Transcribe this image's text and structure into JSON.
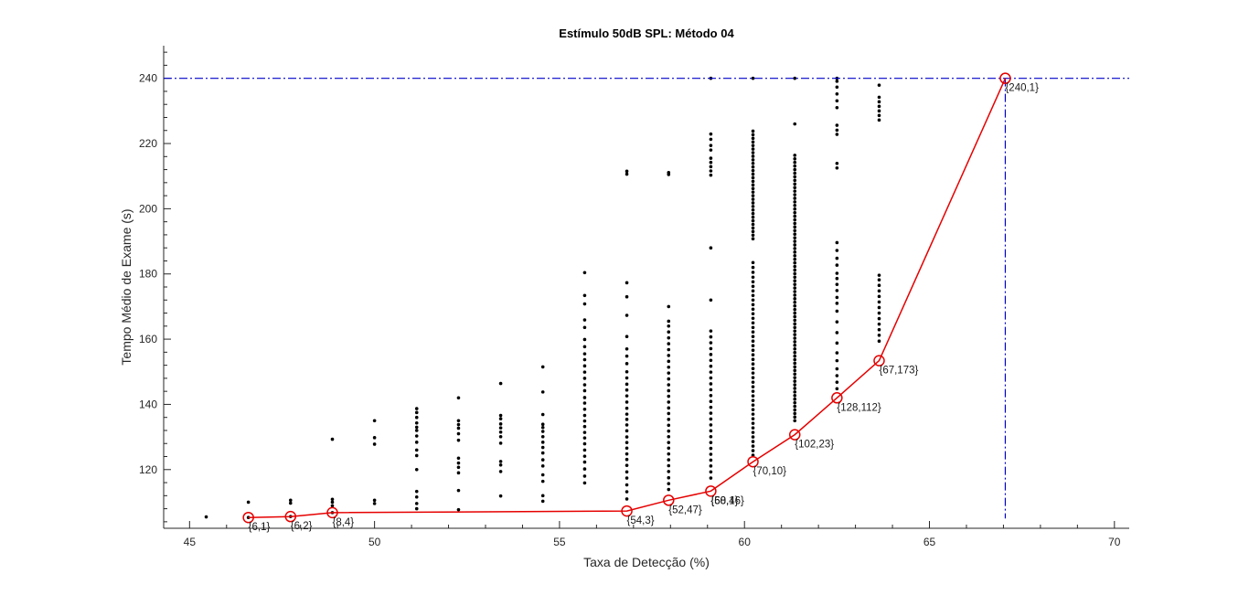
{
  "chart_data": {
    "type": "scatter",
    "title": "Estímulo 50dB SPL: Método 04",
    "xlabel": "Taxa de Detecção (%)",
    "ylabel": "Tempo Médio de Exame (s)",
    "xlim": [
      44.3,
      70.4
    ],
    "ylim": [
      102,
      250
    ],
    "x_ticks": [
      45,
      50,
      55,
      60,
      65,
      70
    ],
    "y_ticks": [
      120,
      140,
      160,
      180,
      200,
      220,
      240
    ],
    "grid": false,
    "legend": "none",
    "colors": {
      "scatter": "#000000",
      "frontier": "#e60000",
      "reference": "#0000cc"
    },
    "reference_lines": {
      "y": 240,
      "x": 67.05
    },
    "scatter_series": [
      {
        "x": 45.45,
        "values": [
          105.5
        ]
      },
      {
        "x": 46.59,
        "values": [
          105.3,
          110.0
        ]
      },
      {
        "x": 47.73,
        "values": [
          105.6,
          109.7,
          110.6
        ]
      },
      {
        "x": 48.86,
        "values": [
          106.8,
          108.9,
          110.0,
          110.9,
          129.3
        ]
      },
      {
        "x": 50.0,
        "values": [
          109.6,
          110.6,
          127.8,
          129.8,
          135.0
        ]
      },
      {
        "x": 51.14,
        "values": [
          108.0,
          109.6,
          111.6,
          113.3,
          120.0,
          124.3,
          126.0,
          128.4,
          130.3,
          132.0,
          133.0,
          134.3,
          136.0,
          137.5,
          138.7
        ]
      },
      {
        "x": 52.27,
        "values": [
          107.7,
          113.6,
          119.0,
          120.7,
          122.0,
          123.5,
          129.0,
          131.0,
          132.7,
          133.8,
          135.0,
          142.0
        ]
      },
      {
        "x": 53.41,
        "values": [
          111.9,
          119.4,
          121.4,
          122.5,
          128.1,
          130.1,
          131.5,
          132.8,
          134.0,
          135.6,
          136.6,
          146.4
        ]
      },
      {
        "x": 54.55,
        "values": [
          110.3,
          112.0,
          116.4,
          118.4,
          121.1,
          123.0,
          125.1,
          126.8,
          128.4,
          130.1,
          131.7,
          132.9,
          133.9,
          136.9,
          143.8,
          151.5
        ]
      },
      {
        "x": 55.68,
        "values": [
          115.9,
          118.0,
          120.2,
          122.3,
          124.1,
          126.0,
          127.9,
          129.7,
          131.4,
          133.2,
          134.9,
          136.6,
          138.5,
          140.4,
          142.1,
          144.2,
          146.0,
          148.0,
          149.9,
          151.8,
          153.7,
          155.5,
          157.7,
          159.9,
          163.6,
          165.9,
          170.8,
          173.4,
          180.4
        ]
      },
      {
        "x": 56.82,
        "values": [
          111.0,
          113.2,
          115.3,
          117.4,
          119.3,
          121.3,
          123.1,
          124.8,
          126.6,
          128.3,
          130.0,
          131.9,
          133.7,
          135.4,
          137.0,
          138.8,
          140.7,
          142.6,
          144.4,
          146.2,
          148.1,
          150.0,
          152.5,
          154.8,
          157.0,
          160.8,
          167.3,
          173.0,
          177.3,
          210.6,
          211.5
        ]
      },
      {
        "x": 57.95,
        "values": [
          113.9,
          115.7,
          117.5,
          119.4,
          121.2,
          123.0,
          124.8,
          126.6,
          128.3,
          130.1,
          131.8,
          133.6,
          135.4,
          137.2,
          138.9,
          140.7,
          142.5,
          144.2,
          146.0,
          147.8,
          149.6,
          151.4,
          153.2,
          155.0,
          156.8,
          158.6,
          160.4,
          162.2,
          164.0,
          165.5,
          170.0,
          210.5,
          211.1
        ]
      },
      {
        "x": 59.09,
        "values": [
          117.4,
          119.3,
          121.1,
          122.9,
          124.7,
          126.5,
          128.3,
          130.1,
          131.9,
          133.7,
          135.5,
          137.3,
          139.1,
          140.9,
          142.7,
          144.5,
          146.3,
          148.1,
          149.9,
          151.7,
          153.5,
          155.3,
          157.1,
          158.9,
          160.7,
          162.5,
          172.0,
          188.0,
          210.3,
          211.6,
          212.9,
          214.2,
          215.5,
          218.0,
          219.4,
          221.3,
          222.9,
          240.0
        ]
      },
      {
        "x": 60.23,
        "values": [
          124.4,
          125.8,
          127.2,
          128.6,
          130.0,
          131.4,
          132.8,
          134.2,
          135.6,
          137.0,
          138.4,
          139.8,
          141.2,
          142.6,
          144.0,
          145.4,
          146.8,
          148.2,
          149.6,
          151.0,
          152.4,
          153.8,
          155.2,
          156.6,
          158.0,
          159.4,
          160.8,
          162.2,
          163.6,
          165.0,
          166.4,
          167.8,
          169.2,
          170.6,
          172.0,
          173.4,
          174.8,
          176.2,
          177.6,
          179.0,
          180.5,
          182.0,
          183.5,
          190.8,
          191.9,
          193.0,
          194.1,
          195.2,
          196.3,
          197.4,
          198.5,
          199.6,
          200.7,
          201.8,
          202.9,
          204.0,
          205.1,
          206.2,
          207.3,
          208.4,
          209.5,
          210.6,
          211.7,
          212.8,
          213.9,
          215.0,
          216.1,
          217.2,
          218.3,
          219.4,
          220.5,
          221.6,
          222.7,
          223.8,
          240.0
        ]
      },
      {
        "x": 61.36,
        "values": [
          135.0,
          136.1,
          137.2,
          138.3,
          139.4,
          140.5,
          141.6,
          142.7,
          143.8,
          144.9,
          146.0,
          147.1,
          148.2,
          149.3,
          150.4,
          151.5,
          152.6,
          153.7,
          154.8,
          155.9,
          157.0,
          158.1,
          159.2,
          160.3,
          161.4,
          162.5,
          163.6,
          164.7,
          165.8,
          166.9,
          168.0,
          169.1,
          170.2,
          171.3,
          172.4,
          173.5,
          174.6,
          175.7,
          176.8,
          177.9,
          179.0,
          180.1,
          181.2,
          182.3,
          183.4,
          184.5,
          185.6,
          186.7,
          187.8,
          188.9,
          190.0,
          191.1,
          192.2,
          193.3,
          194.4,
          195.5,
          196.6,
          197.7,
          198.8,
          199.9,
          201.0,
          202.1,
          203.2,
          204.3,
          205.4,
          206.5,
          207.6,
          208.7,
          209.8,
          210.9,
          212.0,
          213.1,
          214.2,
          215.3,
          216.4,
          226.0,
          240.0
        ]
      },
      {
        "x": 62.5,
        "values": [
          144.8,
          146.8,
          148.8,
          150.9,
          153.4,
          155.8,
          158.8,
          162.0,
          165.3,
          168.6,
          171.0,
          172.8,
          174.9,
          176.8,
          178.6,
          180.2,
          182.7,
          184.8,
          187.2,
          189.6,
          212.5,
          213.9,
          222.8,
          224.1,
          225.6,
          231.0,
          233.1,
          235.2,
          237.3,
          239.1,
          240.0
        ]
      },
      {
        "x": 63.64,
        "values": [
          159.4,
          161.2,
          162.9,
          164.6,
          166.3,
          168.0,
          169.7,
          171.4,
          173.1,
          174.8,
          176.5,
          178.2,
          179.6,
          227.2,
          228.6,
          230.0,
          231.4,
          232.8,
          234.2,
          237.9
        ]
      }
    ],
    "frontier": {
      "name": "",
      "points": [
        {
          "x": 46.59,
          "y": 105.3,
          "label": "{6,1}"
        },
        {
          "x": 47.73,
          "y": 105.6,
          "label": "{6,2}"
        },
        {
          "x": 48.86,
          "y": 106.8,
          "label": "{8,4}"
        },
        {
          "x": 56.82,
          "y": 107.3,
          "label": "{54,3}"
        },
        {
          "x": 57.95,
          "y": 110.6,
          "label": "{52,47}"
        },
        {
          "x": 59.09,
          "y": 113.4,
          "label": "{58,16}"
        },
        {
          "x": 60.23,
          "y": 122.4,
          "label": "{70,10}"
        },
        {
          "x": 61.36,
          "y": 130.7,
          "label": "{102,23}"
        },
        {
          "x": 62.5,
          "y": 142.0,
          "label": "{128,112}"
        },
        {
          "x": 63.64,
          "y": 153.4,
          "label": "{67,173}"
        },
        {
          "x": 67.05,
          "y": 240.0,
          "label": "{240,1}"
        }
      ],
      "overlap_label": {
        "x": 59.09,
        "y": 113.4,
        "label": "{60,4}"
      }
    }
  }
}
